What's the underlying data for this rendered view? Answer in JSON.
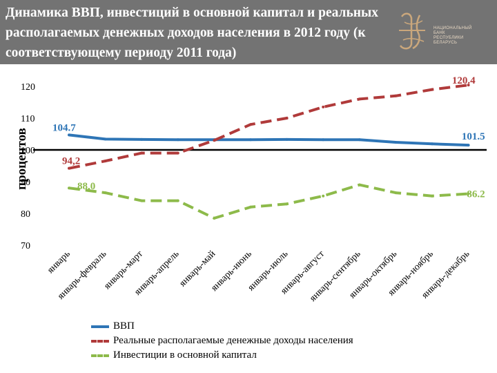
{
  "header": {
    "title": "Динамика ВВП, инвестиций в основной капитал и реальных располагаемых денежных доходов населения в 2012 году (к соответствующему периоду 2011 года)",
    "logo_text": [
      "НАЦИОНАЛЬНЫЙ",
      "БАНК",
      "РЕСПУБЛИКИ",
      "БЕЛАРУСЬ"
    ]
  },
  "chart_data": {
    "type": "line",
    "ylabel": "процентов",
    "ylim": [
      70,
      125
    ],
    "yticks": [
      70,
      80,
      90,
      100,
      110,
      120
    ],
    "reference_line": 100,
    "categories": [
      "январь",
      "январь-февраль",
      "январь-март",
      "январь-апрель",
      "январь-май",
      "январь-июнь",
      "январь-июль",
      "январь-август",
      "январь-сентябрь",
      "январь-октябрь",
      "январь-ноябрь",
      "январь-декабрь"
    ],
    "series": [
      {
        "name": "ВВП",
        "color": "#2e75b6",
        "dashed": false,
        "values": [
          104.7,
          103.4,
          103.3,
          103.2,
          103.2,
          103.2,
          103.3,
          103.2,
          103.2,
          102.4,
          101.9,
          101.5
        ],
        "labels": [
          {
            "index": 0,
            "text": "104.7"
          },
          {
            "index": 11,
            "text": "101.5"
          }
        ]
      },
      {
        "name": "Реальные располагаемые денежные доходы населения",
        "color": "#b03a3a",
        "dashed": true,
        "values": [
          94.2,
          96.5,
          99.0,
          99.0,
          103.0,
          108.0,
          110.0,
          113.5,
          116.0,
          117.0,
          119.0,
          120.4
        ],
        "labels": [
          {
            "index": 0,
            "text": "94,2"
          },
          {
            "index": 11,
            "text": "120.4"
          }
        ]
      },
      {
        "name": "Инвестиции в основной капитал",
        "color": "#8dba4a",
        "dashed": true,
        "values": [
          88.0,
          86.5,
          84.0,
          84.0,
          78.5,
          82.0,
          83.0,
          85.5,
          89.0,
          86.5,
          85.5,
          86.2
        ],
        "labels": [
          {
            "index": 0,
            "text": "88,0"
          },
          {
            "index": 11,
            "text": "86.2"
          }
        ]
      }
    ]
  }
}
